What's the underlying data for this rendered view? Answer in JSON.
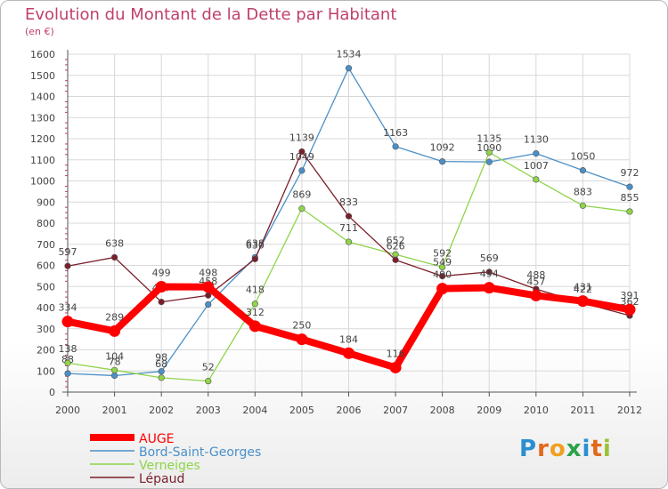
{
  "title": "Evolution du Montant de la Dette par Habitant",
  "subtitle": "(en €)",
  "logo": {
    "letters": [
      "P",
      "r",
      "o",
      "x",
      "i",
      "t",
      "i"
    ],
    "colors": [
      "#2a8fd0",
      "#e06a1a",
      "#f0a020",
      "#2aa34a",
      "#2a8fd0",
      "#e06a1a",
      "#9ac234"
    ]
  },
  "chart_data": {
    "type": "line",
    "x": [
      "2000",
      "2001",
      "2002",
      "2003",
      "2004",
      "2005",
      "2006",
      "2007",
      "2008",
      "2009",
      "2010",
      "2011",
      "2012"
    ],
    "ylim": [
      0,
      1600
    ],
    "yticks": [
      "0",
      "100",
      "200",
      "300",
      "400",
      "500",
      "600",
      "700",
      "800",
      "900",
      "1000",
      "1100",
      "1200",
      "1300",
      "1400",
      "1500",
      "1600"
    ],
    "grid": true,
    "legend_position": "bottom-left",
    "series": [
      {
        "name": "AUGE",
        "color": "#ff0000",
        "values": [
          334,
          289,
          499,
          498,
          312,
          250,
          184,
          116,
          490,
          494,
          457,
          431,
          391
        ]
      },
      {
        "name": "Bord-Saint-Georges",
        "color": "#4a90c8",
        "values": [
          88,
          78,
          98,
          415,
          638,
          1049,
          1534,
          1163,
          1092,
          1090,
          1130,
          1050,
          972
        ],
        "labels": [
          "88",
          "78",
          "98",
          "",
          "638",
          "1049",
          "1534",
          "1163",
          "1092",
          "1090",
          "1130",
          "1050",
          "972"
        ]
      },
      {
        "name": "Verneiges",
        "color": "#8fd44a",
        "values": [
          138,
          104,
          68,
          52,
          418,
          869,
          711,
          652,
          592,
          1135,
          1007,
          883,
          855
        ]
      },
      {
        "name": "Lépaud",
        "color": "#7a1f2a",
        "values": [
          597,
          638,
          427,
          458,
          630,
          1139,
          833,
          626,
          549,
          569,
          488,
          422,
          362
        ]
      }
    ]
  }
}
